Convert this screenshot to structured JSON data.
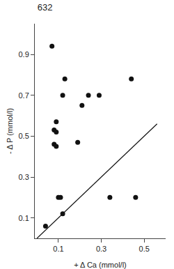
{
  "chart_data": {
    "type": "scatter",
    "title": "632",
    "xlabel": "+ Δ Ca (mmol/l)",
    "ylabel": "- Δ P (mmol/l)",
    "series": [
      {
        "type": "scatter",
        "color": "#111111",
        "marker": "circle",
        "x": [
          0.04,
          0.07,
          0.08,
          0.08,
          0.09,
          0.09,
          0.09,
          0.1,
          0.11,
          0.12,
          0.12,
          0.13,
          0.19,
          0.21,
          0.24,
          0.29,
          0.34,
          0.44,
          0.46
        ],
        "values": [
          0.06,
          0.94,
          0.46,
          0.53,
          0.45,
          0.52,
          0.57,
          0.2,
          0.2,
          0.12,
          0.7,
          0.78,
          0.47,
          0.65,
          0.7,
          0.7,
          0.2,
          0.78,
          0.2
        ]
      },
      {
        "type": "line",
        "color": "#111111",
        "line_style": "solid",
        "x": [
          0.0,
          0.56
        ],
        "values": [
          0.0,
          0.56
        ]
      }
    ],
    "xlim": [
      -0.01,
      0.6
    ],
    "ylim": [
      0.0,
      1.05
    ],
    "xticks": [
      0.1,
      0.3,
      0.5
    ],
    "yticks": [
      0.1,
      0.3,
      0.5,
      0.7,
      0.9
    ],
    "grid": false
  }
}
